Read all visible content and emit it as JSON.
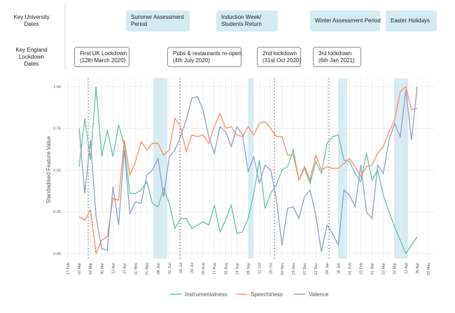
{
  "row_labels": {
    "university": [
      "Key University",
      "Dates"
    ],
    "lockdown": [
      "Key England",
      "Lockdown",
      "Dates"
    ]
  },
  "university_dates": [
    [
      "Summer Assessment",
      "Period"
    ],
    [
      "Induction Week/",
      "Students Return"
    ],
    [
      "Winter Assessment Period"
    ],
    [
      "Easter Holidays"
    ]
  ],
  "lockdown_dates": [
    [
      "First UK Lockdown",
      "(12th March 2020)"
    ],
    [
      "Pubs & restaurants re-open.",
      "(4th July 2020)"
    ],
    [
      "2nd lockdown",
      "(31st Oct 2020)"
    ],
    [
      "3rd lockdown",
      "(6th Jan 2021)"
    ]
  ],
  "chart_data": {
    "type": "line",
    "y_label": "Standadised  Feature  Value",
    "categories": [
      "17 Feb",
      null,
      "02 Mar",
      null,
      "16 Mar",
      null,
      "30 Mar",
      null,
      "13 Apr",
      null,
      "27 Apr",
      null,
      "11 May",
      null,
      "25 May",
      null,
      "08 Jun",
      null,
      "22 Jun",
      null,
      "06 Jul",
      null,
      "20 Jul",
      null,
      "03 Aug",
      null,
      "17 Aug",
      null,
      "31 Aug",
      null,
      "14 Sep",
      null,
      "28 Sep",
      null,
      "12 Oct",
      null,
      "26 Oct",
      null,
      "09 Nov",
      null,
      "23 Nov",
      null,
      "07 Dec",
      null,
      "21 Dec",
      null,
      "04 Jan",
      null,
      "18 Jan",
      null,
      "01 Feb",
      null,
      "15 Feb",
      null,
      "01 Mar",
      null,
      "15 Mar",
      null,
      "29 Mar",
      null,
      "12 Apr",
      null,
      "26 Apr",
      null,
      "10 May"
    ],
    "series": [
      {
        "name": "Instrumentalness",
        "color": "#66c2a5",
        "values": [
          null,
          null,
          0.52,
          0.81,
          0.56,
          1.0,
          0.58,
          0.74,
          0.58,
          0.77,
          0.65,
          0.36,
          0.36,
          0.38,
          0.43,
          0.3,
          0.28,
          0.39,
          0.3,
          0.15,
          0.21,
          0.21,
          0.15,
          0.17,
          0.19,
          0.17,
          0.29,
          0.13,
          0.2,
          0.29,
          0.12,
          0.13,
          0.21,
          0.36,
          0.56,
          0.27,
          0.36,
          0.41,
          0.5,
          0.52,
          0.62,
          0.44,
          0.51,
          0.42,
          0.55,
          0.48,
          0.66,
          0.7,
          0.71,
          0.56,
          0.55,
          0.48,
          0.43,
          0.6,
          0.44,
          0.5,
          0.35,
          0.25,
          0.16,
          0.08,
          0.0,
          0.05,
          0.1,
          null,
          null
        ]
      },
      {
        "name": "Speechiness",
        "color": "#fc8d62",
        "values": [
          null,
          null,
          0.22,
          0.2,
          0.26,
          0.0,
          0.08,
          0.1,
          0.33,
          0.32,
          0.68,
          0.47,
          0.55,
          0.67,
          0.62,
          0.66,
          0.66,
          0.59,
          0.62,
          0.81,
          0.76,
          0.61,
          0.71,
          0.7,
          0.71,
          0.66,
          0.76,
          0.84,
          0.75,
          0.76,
          0.71,
          0.7,
          0.76,
          0.71,
          0.78,
          0.79,
          0.75,
          0.7,
          0.7,
          0.59,
          0.59,
          0.44,
          0.52,
          0.44,
          0.59,
          0.5,
          0.52,
          0.51,
          0.51,
          0.54,
          0.57,
          0.52,
          0.46,
          0.52,
          0.53,
          0.6,
          0.64,
          0.73,
          0.8,
          0.97,
          1.0,
          0.86,
          0.87,
          null,
          null
        ]
      },
      {
        "name": "Valence",
        "color": "#8da0cb",
        "values": [
          null,
          null,
          0.75,
          0.36,
          0.68,
          0.22,
          0.03,
          0.02,
          0.4,
          0.17,
          0.62,
          0.24,
          0.31,
          0.3,
          0.47,
          0.5,
          0.57,
          0.34,
          0.58,
          0.62,
          0.7,
          0.8,
          0.93,
          0.94,
          0.86,
          0.7,
          0.6,
          0.76,
          0.73,
          0.64,
          0.76,
          0.71,
          0.49,
          0.58,
          0.42,
          0.53,
          0.5,
          0.33,
          0.05,
          0.27,
          0.28,
          0.21,
          0.34,
          0.38,
          0.23,
          0.01,
          0.17,
          0.12,
          0.05,
          0.38,
          0.35,
          0.28,
          0.53,
          0.25,
          0.21,
          0.53,
          0.48,
          0.68,
          0.78,
          0.7,
          0.98,
          0.68,
          1.0,
          null,
          null
        ]
      }
    ],
    "ylim": [
      -0.03,
      1.05
    ],
    "yticks": [
      {
        "value": 0,
        "label": "0.00"
      },
      {
        "value": 0.25,
        "label": "0.25"
      },
      {
        "value": 0.5,
        "label": "0.50"
      },
      {
        "value": 0.75,
        "label": "0.75"
      },
      {
        "value": 1,
        "label": "1.00"
      }
    ],
    "grid": true,
    "legend": "bottom"
  }
}
